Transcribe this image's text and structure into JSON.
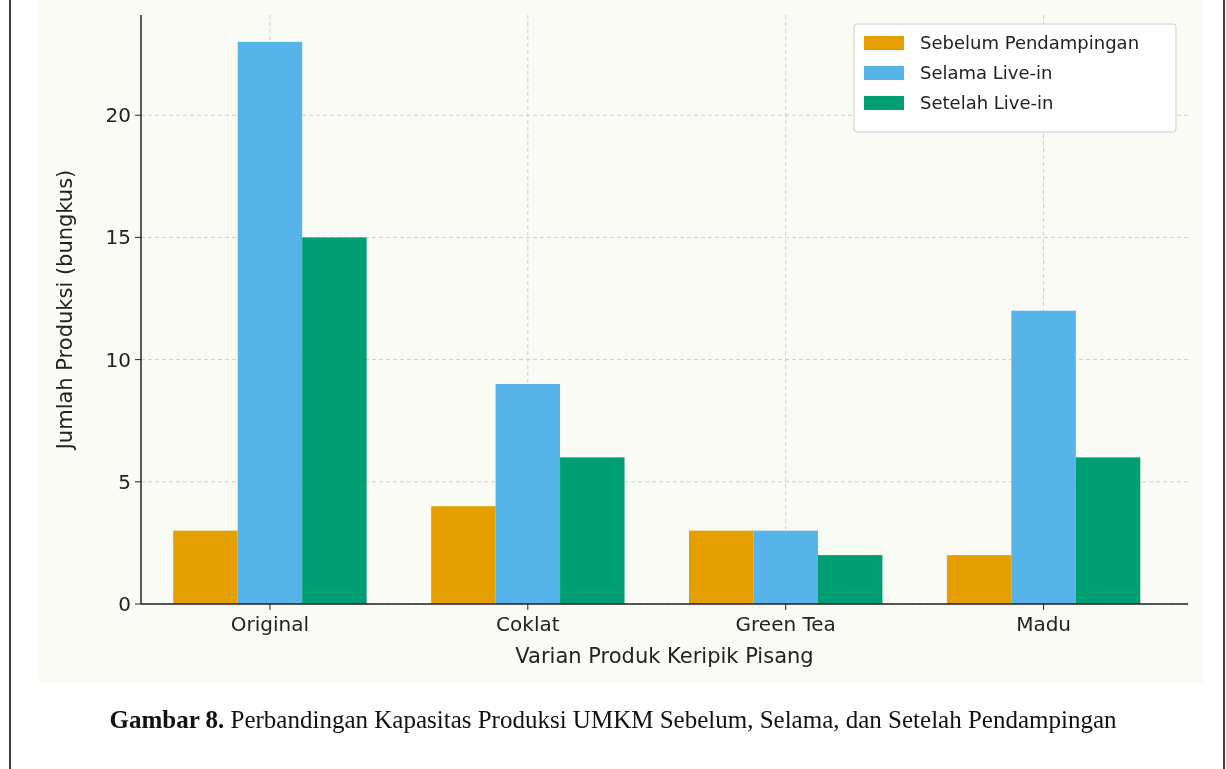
{
  "chart_data": {
    "type": "bar",
    "xlabel": "Varian Produk Keripik Pisang",
    "ylabel": "Jumlah Produksi (bungkus)",
    "categories": [
      "Original",
      "Coklat",
      "Green Tea",
      "Madu"
    ],
    "series": [
      {
        "name": "Sebelum Pendampingan",
        "color": "#e69f00",
        "values": [
          3,
          4,
          3,
          2
        ]
      },
      {
        "name": "Selama Live-in",
        "color": "#56b4e9",
        "values": [
          23,
          9,
          3,
          12
        ]
      },
      {
        "name": "Setelah Live-in",
        "color": "#009e73",
        "values": [
          15,
          6,
          2,
          6
        ]
      }
    ],
    "ylim": [
      0,
      24.1
    ],
    "yticks": [
      0,
      5,
      10,
      15,
      20
    ],
    "grid": true,
    "legend": "top right",
    "annotations": [
      "Gambar 8.",
      "Perbandingan Kapasitas Produksi UMKM Sebelum, Selama, dan Setelah Pendampingan"
    ]
  }
}
